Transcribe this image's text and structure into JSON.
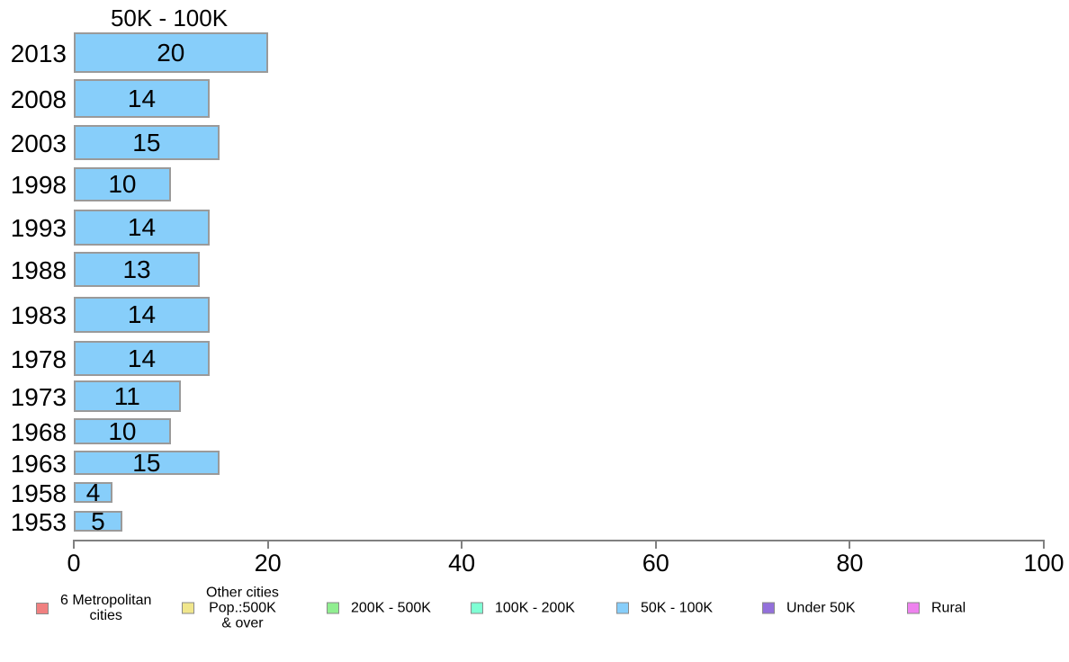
{
  "chart_data": {
    "type": "bar",
    "orientation": "horizontal",
    "title": "50K - 100K",
    "categories": [
      "2013",
      "2008",
      "2003",
      "1998",
      "1993",
      "1988",
      "1983",
      "1978",
      "1973",
      "1968",
      "1963",
      "1958",
      "1953"
    ],
    "values": [
      20,
      14,
      15,
      10,
      14,
      13,
      14,
      14,
      11,
      10,
      15,
      4,
      5
    ],
    "xlabel": "",
    "ylabel": "",
    "xlim": [
      0,
      100
    ],
    "x_ticks": [
      "0",
      "20",
      "40",
      "60",
      "80",
      "100"
    ],
    "grid": false,
    "bar_color": "#87CEFA",
    "bar_border_color": "#9A9A9A",
    "axis_color": "#808080",
    "legend_position": "bottom"
  },
  "legend": {
    "items": [
      {
        "name": "6-metropolitan-cities",
        "lines": [
          "6 Metropolitan",
          "cities"
        ],
        "color": "#F08080"
      },
      {
        "name": "other-cities-pop-500k-and-over",
        "lines": [
          "Other cities",
          "Pop.:500K",
          "& over"
        ],
        "color": "#F0E68C"
      },
      {
        "name": "200k-500k",
        "lines": [
          "200K - 500K"
        ],
        "color": "#90EE90"
      },
      {
        "name": "100k-200k",
        "lines": [
          "100K - 200K"
        ],
        "color": "#7FFFD4"
      },
      {
        "name": "50k-100k",
        "lines": [
          "50K - 100K"
        ],
        "color": "#87CEFA"
      },
      {
        "name": "under-50k",
        "lines": [
          "Under 50K"
        ],
        "color": "#9370DB"
      },
      {
        "name": "rural",
        "lines": [
          "Rural"
        ],
        "color": "#EE82EE"
      }
    ]
  }
}
